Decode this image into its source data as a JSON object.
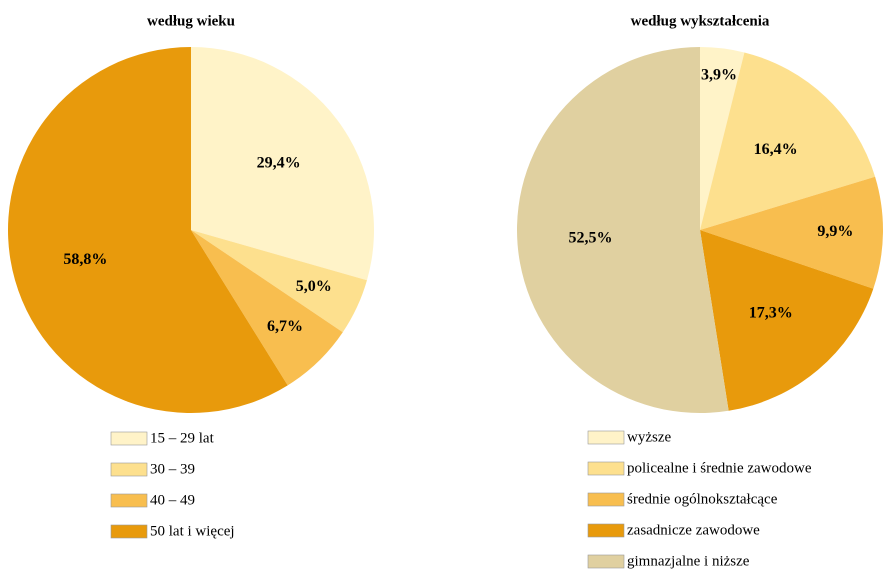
{
  "chart_data": [
    {
      "type": "pie",
      "title": "według wieku",
      "categories": [
        "15 – 29 lat",
        "30 – 39",
        "40 – 49",
        "50 lat i więcej"
      ],
      "values": [
        29.4,
        5.0,
        6.7,
        58.8
      ],
      "value_labels": [
        "29,4%",
        "5,0%",
        "6,7%",
        "58,8%"
      ],
      "colors": [
        "#fff3c8",
        "#fde08e",
        "#f8be4f",
        "#e89a0c"
      ]
    },
    {
      "type": "pie",
      "title": "według wykształcenia",
      "categories": [
        "wyższe",
        "policealne i średnie zawodowe",
        "średnie ogólnokształcące",
        "zasadnicze zawodowe",
        "gimnazjalne i niższe"
      ],
      "values": [
        3.9,
        16.4,
        9.9,
        17.3,
        52.5
      ],
      "value_labels": [
        "3,9%",
        "16,4%",
        "9,9%",
        "17,3%",
        "52,5%"
      ],
      "colors": [
        "#fff3c8",
        "#fde08e",
        "#f8be4f",
        "#e89a0c",
        "#e0d0a0"
      ]
    }
  ]
}
